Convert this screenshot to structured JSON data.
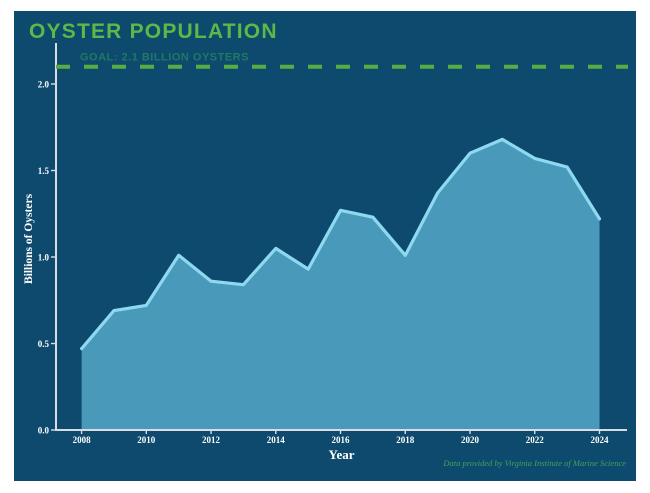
{
  "header": {
    "title": "OYSTER POPULATION"
  },
  "footer": {
    "credit": "Data provided by Virginia Institute of Marine Science"
  },
  "colors": {
    "panel_background": "#0d4a6e",
    "title_green": "#5cb848",
    "goal_dash_green": "#57ad43",
    "goal_label_teal": "#1e7a64",
    "area_fill": "#4999ba",
    "trend_line": "#8fd9f0",
    "axis_line": "#d9dde3",
    "tick_label": "#ffffff",
    "credit_green": "#44a061"
  },
  "chart_data": {
    "type": "area",
    "title": "OYSTER POPULATION",
    "x": [
      2008,
      2009,
      2010,
      2011,
      2012,
      2013,
      2014,
      2015,
      2016,
      2017,
      2018,
      2019,
      2020,
      2021,
      2022,
      2023,
      2024
    ],
    "values": [
      0.47,
      0.69,
      0.72,
      1.01,
      0.86,
      0.84,
      1.05,
      0.93,
      1.27,
      1.23,
      1.01,
      1.37,
      1.6,
      1.68,
      1.57,
      1.52,
      1.22
    ],
    "xlabel": "Year",
    "ylabel": "Billions of Oysters",
    "xticks": [
      2008,
      2010,
      2012,
      2014,
      2016,
      2018,
      2020,
      2022,
      2024
    ],
    "yticks": [
      "0.0",
      "0.5",
      "1.0",
      "1.5",
      "2.0"
    ],
    "xlim": [
      2007.21,
      2024.85
    ],
    "ylim": [
      0,
      2.237
    ],
    "grid": false,
    "legend": "none",
    "goal_line": {
      "value": 2.1,
      "label": "GOAL: 2.1 BILLION OYSTERS",
      "style": "dashed"
    }
  }
}
